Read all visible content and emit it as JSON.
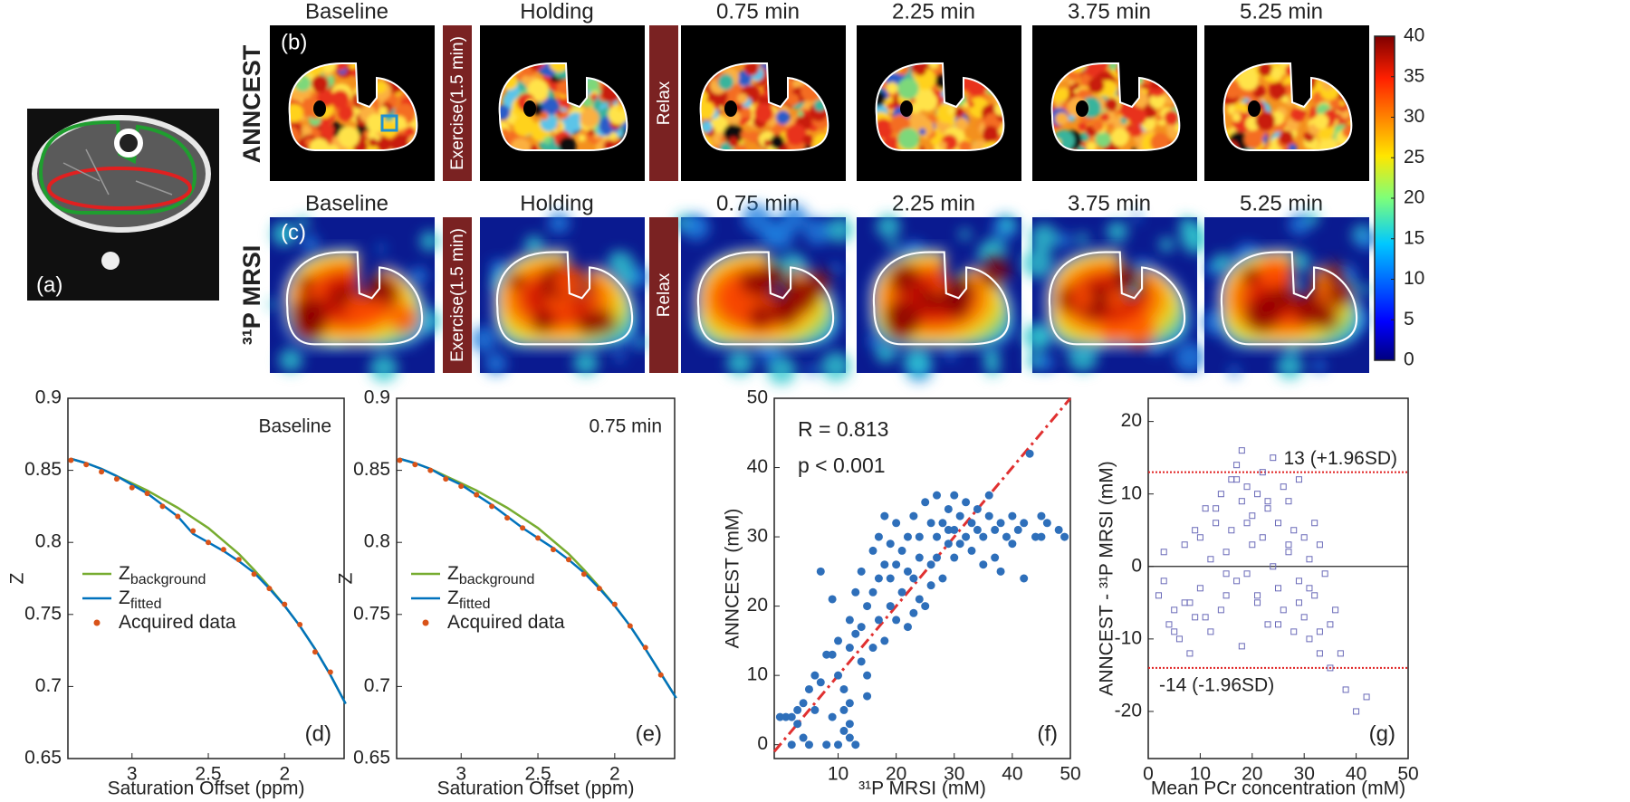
{
  "figure": {
    "panel_a": "(a)",
    "panel_b": "(b)",
    "panel_c": "(c)",
    "row_labels": [
      "ANNCEST",
      "³¹P MRSI"
    ],
    "time_points": [
      "Baseline",
      "Holding",
      "0.75 min",
      "2.25 min",
      "3.75 min",
      "5.25 min"
    ],
    "interventions": [
      "Exercise(1.5 min)",
      "Relax"
    ]
  },
  "colorbar": {
    "ylim": [
      0,
      40
    ],
    "yticks": [
      0,
      5,
      10,
      15,
      20,
      25,
      30,
      35,
      40
    ]
  },
  "chart_data": [
    {
      "type": "line",
      "panel_label": "(d)",
      "annotation": "Baseline",
      "xlabel": "Saturation Offset (ppm)",
      "ylabel": "Z",
      "x": [
        3.4,
        3.3,
        3.2,
        3.1,
        3.0,
        2.9,
        2.8,
        2.7,
        2.6,
        2.5,
        2.4,
        2.3,
        2.2,
        2.1,
        2.0,
        1.9,
        1.8,
        1.7,
        1.6
      ],
      "xlim": [
        3.42,
        1.61
      ],
      "xticks": [
        3,
        2.5,
        2
      ],
      "ylim": [
        0.65,
        0.9
      ],
      "yticks": [
        0.65,
        0.7,
        0.75,
        0.8,
        0.85,
        0.9
      ],
      "series": [
        {
          "name": "Z",
          "name_sub": "background",
          "color": "#77ac30",
          "values": [
            0.858,
            0.855,
            0.851,
            0.846,
            0.841,
            0.836,
            0.83,
            0.824,
            0.817,
            0.81,
            0.801,
            0.792,
            0.781,
            0.769,
            0.756,
            0.742,
            0.726,
            0.708,
            0.688
          ]
        },
        {
          "name": "Z",
          "name_sub": "fitted",
          "color": "#0072bd",
          "values": [
            0.858,
            0.855,
            0.851,
            0.846,
            0.84,
            0.834,
            0.826,
            0.818,
            0.806,
            0.8,
            0.794,
            0.787,
            0.779,
            0.768,
            0.756,
            0.742,
            0.726,
            0.708,
            0.688
          ]
        },
        {
          "name": "Acquired data",
          "color": "#d95319",
          "marker": true,
          "values": [
            0.857,
            0.854,
            0.849,
            0.844,
            0.838,
            0.834,
            0.825,
            0.818,
            0.808,
            0.8,
            0.795,
            0.788,
            0.778,
            0.768,
            0.757,
            0.743,
            0.724,
            0.71,
            null
          ]
        }
      ]
    },
    {
      "type": "line",
      "panel_label": "(e)",
      "annotation": "0.75 min",
      "xlabel": "Saturation Offset (ppm)",
      "ylabel": "Z",
      "x": [
        3.4,
        3.3,
        3.2,
        3.1,
        3.0,
        2.9,
        2.8,
        2.7,
        2.6,
        2.5,
        2.4,
        2.3,
        2.2,
        2.1,
        2.0,
        1.9,
        1.8,
        1.7,
        1.6
      ],
      "xlim": [
        3.42,
        1.61
      ],
      "xticks": [
        3,
        2.5,
        2
      ],
      "ylim": [
        0.65,
        0.9
      ],
      "yticks": [
        0.65,
        0.7,
        0.75,
        0.8,
        0.85,
        0.9
      ],
      "series": [
        {
          "name": "Z",
          "name_sub": "background",
          "color": "#77ac30",
          "values": [
            0.858,
            0.855,
            0.851,
            0.846,
            0.841,
            0.836,
            0.83,
            0.824,
            0.817,
            0.81,
            0.801,
            0.792,
            0.781,
            0.769,
            0.756,
            0.742,
            0.726,
            0.709,
            0.692
          ]
        },
        {
          "name": "Z",
          "name_sub": "fitted",
          "color": "#0072bd",
          "values": [
            0.858,
            0.855,
            0.851,
            0.845,
            0.84,
            0.833,
            0.826,
            0.818,
            0.81,
            0.803,
            0.796,
            0.788,
            0.779,
            0.768,
            0.756,
            0.742,
            0.726,
            0.709,
            0.692
          ]
        },
        {
          "name": "Acquired data",
          "color": "#d95319",
          "marker": true,
          "values": [
            0.857,
            0.854,
            0.85,
            0.844,
            0.839,
            0.833,
            0.825,
            0.817,
            0.81,
            0.803,
            0.795,
            0.788,
            0.778,
            0.768,
            0.757,
            0.742,
            0.727,
            0.708,
            null
          ]
        }
      ]
    },
    {
      "type": "scatter",
      "panel_label": "(f)",
      "annotations": [
        "R = 0.813",
        "p < 0.001"
      ],
      "xlabel": "³¹P MRSI (mM)",
      "ylabel": "ANNCEST (mM)",
      "xlim": [
        -1,
        50
      ],
      "ylim": [
        -2,
        50
      ],
      "xticks": [
        10,
        20,
        30,
        40,
        50
      ],
      "yticks": [
        0,
        10,
        20,
        30,
        40,
        50
      ],
      "identity_line": true,
      "series": [
        {
          "color": "#2e6fba",
          "marker": "circle",
          "x": [
            0,
            1,
            2,
            3,
            4,
            5,
            6,
            4,
            2,
            5,
            8,
            7,
            8,
            9,
            7,
            9,
            10,
            10,
            11,
            11,
            12,
            12,
            12,
            11,
            13,
            10,
            12,
            12,
            13,
            13,
            14,
            14,
            15,
            14,
            15,
            16,
            16,
            16,
            17,
            17,
            17,
            18,
            18,
            19,
            19,
            19,
            20,
            20,
            20,
            21,
            21,
            22,
            22,
            22,
            23,
            23,
            24,
            24,
            24,
            25,
            25,
            26,
            26,
            27,
            27,
            27,
            28,
            28,
            29,
            29,
            30,
            30,
            30,
            31,
            31,
            32,
            32,
            33,
            33,
            34,
            34,
            35,
            35,
            36,
            37,
            37,
            38,
            38,
            39,
            40,
            40,
            41,
            42,
            42,
            43,
            44,
            45,
            46,
            48,
            49,
            45,
            36,
            29,
            26,
            23,
            18,
            15,
            9,
            6,
            3
          ],
          "values": [
            4,
            4,
            4,
            5,
            6,
            8,
            10,
            1,
            0,
            0,
            0,
            9,
            13,
            21,
            25,
            13,
            15,
            10,
            8,
            5,
            3,
            1,
            6,
            2,
            0,
            0,
            14,
            18,
            16,
            22,
            12,
            17,
            20,
            25,
            10,
            14,
            22,
            28,
            18,
            24,
            30,
            15,
            26,
            24,
            20,
            29,
            32,
            26,
            18,
            22,
            28,
            25,
            17,
            30,
            24,
            33,
            27,
            21,
            30,
            20,
            35,
            26,
            32,
            30,
            27,
            36,
            24,
            32,
            34,
            29,
            36,
            31,
            27,
            33,
            29,
            35,
            30,
            32,
            28,
            31,
            34,
            30,
            26,
            33,
            31,
            27,
            32,
            25,
            30,
            33,
            29,
            31,
            24,
            32,
            42,
            30,
            30,
            32,
            31,
            30,
            33,
            36,
            31,
            23,
            19,
            33,
            7,
            4,
            5,
            3
          ]
        }
      ]
    },
    {
      "type": "scatter",
      "panel_label": "(g)",
      "xlabel": "Mean PCr concentration (mM)",
      "ylabel": "ANNCEST - ³¹P MRSI (mM)",
      "xlim": [
        0,
        50
      ],
      "ylim": [
        -26.5,
        23.2
      ],
      "xticks": [
        0,
        10,
        20,
        30,
        40,
        50
      ],
      "yticks": [
        -20,
        -10,
        0,
        10,
        20
      ],
      "zero_line": true,
      "hlines": [
        {
          "value": 13,
          "label": "13 (+1.96SD)",
          "color": "#e02020"
        },
        {
          "value": -14,
          "label": "-14 (-1.96SD)",
          "color": "#e02020"
        }
      ],
      "series": [
        {
          "color": "#6a6ab8",
          "marker": "square",
          "x": [
            2,
            3,
            4,
            5,
            6,
            7,
            8,
            8,
            9,
            10,
            10,
            11,
            12,
            12,
            13,
            14,
            14,
            15,
            15,
            16,
            16,
            17,
            17,
            18,
            18,
            19,
            19,
            20,
            20,
            21,
            21,
            22,
            22,
            23,
            23,
            24,
            24,
            25,
            25,
            26,
            26,
            27,
            27,
            28,
            28,
            29,
            29,
            30,
            30,
            31,
            31,
            32,
            32,
            33,
            33,
            34,
            35,
            36,
            37,
            38,
            40,
            42,
            3,
            5,
            7,
            9,
            11,
            13,
            15,
            17,
            19,
            21,
            23,
            25,
            27,
            29,
            31,
            33,
            35,
            18
          ],
          "values": [
            -4,
            2,
            -8,
            -6,
            -10,
            3,
            -12,
            -5,
            -7,
            4,
            -3,
            8,
            -9,
            1,
            6,
            -6,
            10,
            2,
            -4,
            12,
            5,
            -2,
            14,
            9,
            16,
            -1,
            11,
            7,
            3,
            -5,
            10,
            13,
            4,
            -8,
            8,
            0,
            15,
            6,
            -3,
            11,
            -6,
            9,
            2,
            -9,
            5,
            -2,
            12,
            4,
            -7,
            1,
            -10,
            6,
            -4,
            -12,
            3,
            -1,
            -8,
            -6,
            -12,
            -17,
            -20,
            -18,
            -2,
            -9,
            -5,
            5,
            -7,
            8,
            -1,
            12,
            6,
            -4,
            9,
            -8,
            3,
            -5,
            -3,
            -9,
            -14,
            -11
          ]
        }
      ]
    }
  ]
}
